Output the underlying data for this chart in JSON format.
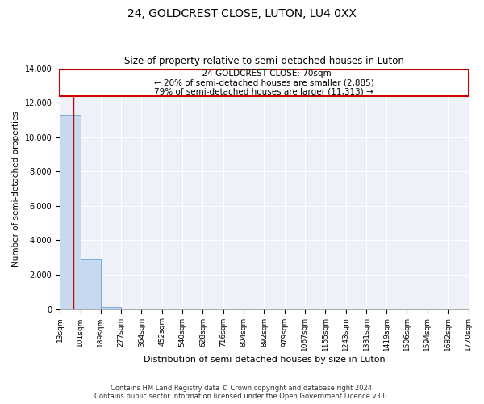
{
  "title": "24, GOLDCREST CLOSE, LUTON, LU4 0XX",
  "subtitle": "Size of property relative to semi-detached houses in Luton",
  "xlabel": "Distribution of semi-detached houses by size in Luton",
  "ylabel": "Number of semi-detached properties",
  "bin_edges": [
    13,
    101,
    189,
    277,
    364,
    452,
    540,
    628,
    716,
    804,
    892,
    979,
    1067,
    1155,
    1243,
    1331,
    1419,
    1506,
    1594,
    1682,
    1770
  ],
  "bar_heights": [
    11313,
    2885,
    100,
    0,
    0,
    0,
    0,
    0,
    0,
    0,
    0,
    0,
    0,
    0,
    0,
    0,
    0,
    0,
    0,
    0
  ],
  "bar_color": "#c6d9f0",
  "bar_edgecolor": "#7aabdb",
  "property_size": 70,
  "annotation_line1": "  24 GOLDCREST CLOSE: 70sqm",
  "annotation_line2": "← 20% of semi-detached houses are smaller (2,885)",
  "annotation_line3": "79% of semi-detached houses are larger (11,313) →",
  "vline_color": "#cc0000",
  "annotation_box_color": "#cc0000",
  "ylim": [
    0,
    14000
  ],
  "footer_line1": "Contains HM Land Registry data © Crown copyright and database right 2024.",
  "footer_line2": "Contains public sector information licensed under the Open Government Licence v3.0.",
  "tick_labels": [
    "13sqm",
    "101sqm",
    "189sqm",
    "277sqm",
    "364sqm",
    "452sqm",
    "540sqm",
    "628sqm",
    "716sqm",
    "804sqm",
    "892sqm",
    "979sqm",
    "1067sqm",
    "1155sqm",
    "1243sqm",
    "1331sqm",
    "1419sqm",
    "1506sqm",
    "1594sqm",
    "1682sqm",
    "1770sqm"
  ],
  "bg_color": "#eef2f8",
  "grid_color": "#ffffff",
  "title_fontsize": 10,
  "subtitle_fontsize": 8.5,
  "ylabel_fontsize": 7.5,
  "xlabel_fontsize": 8,
  "tick_fontsize": 6.5,
  "ytick_fontsize": 7,
  "ann_fontsize": 7.5,
  "footer_fontsize": 6
}
